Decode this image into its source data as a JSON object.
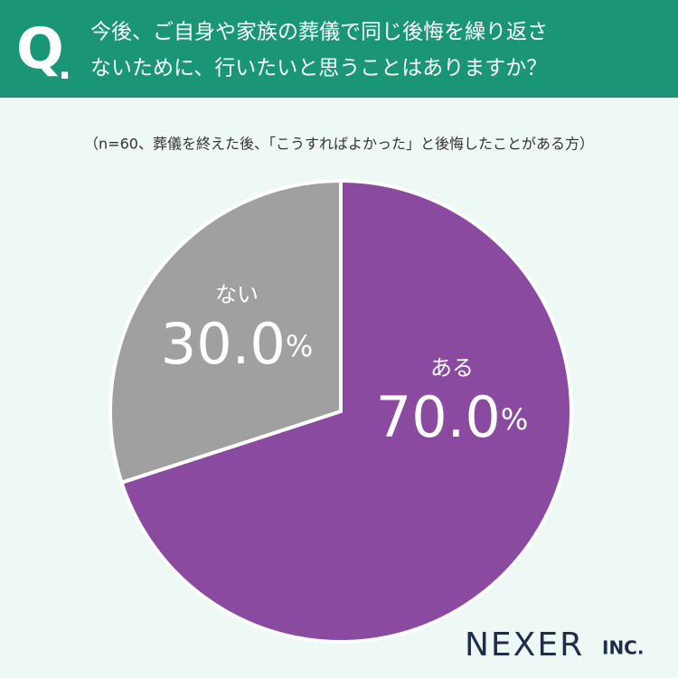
{
  "header": {
    "mark": "Q",
    "dot": ".",
    "question": [
      "今後、ご自身や家族の葬儀で同じ後悔を繰り返さ",
      "ないために、行いたいと思うことはありますか？"
    ]
  },
  "chart_data": {
    "type": "pie",
    "subtitle": "（n=60、葬儀を終えた後、「こうすればよかった」と後悔したことがある方）",
    "categories": [
      "ある",
      "ない"
    ],
    "values": [
      70,
      30
    ],
    "value_labels": [
      "70.0%",
      "30.0%"
    ],
    "colors": [
      "#8a4a9f",
      "#a0a0a0"
    ]
  },
  "logo": {
    "name": "NEXER",
    "suffix": "INC."
  }
}
